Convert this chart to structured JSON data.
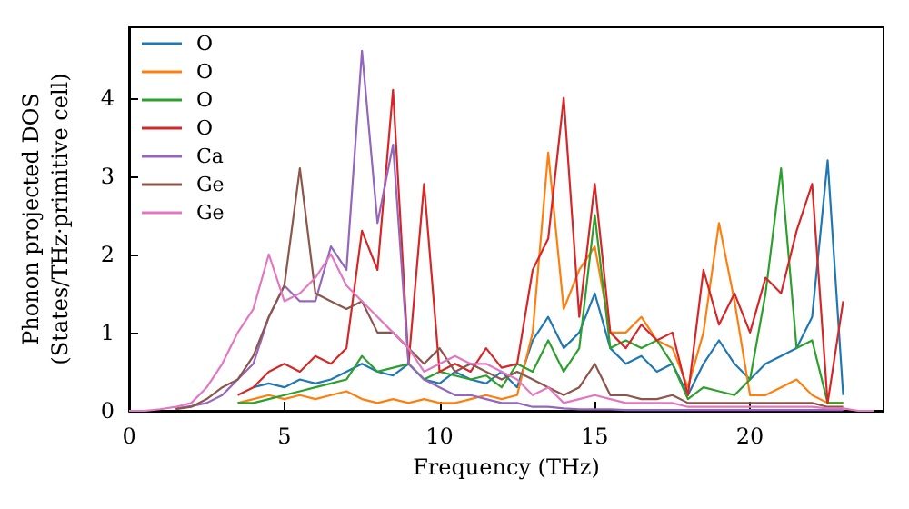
{
  "chart_data": {
    "type": "line",
    "xlabel": "Frequency (THz)",
    "ylabel": "Phonon projected DOS\n(States/THz·primitive cell)",
    "x": [
      0,
      0.5,
      1,
      1.5,
      2,
      2.5,
      3,
      3.5,
      4,
      4.5,
      5,
      5.5,
      6,
      6.5,
      7,
      7.5,
      8,
      8.5,
      9,
      9.5,
      10,
      10.5,
      11,
      11.5,
      12,
      12.5,
      13,
      13.5,
      14,
      14.5,
      15,
      15.5,
      16,
      16.5,
      17,
      17.5,
      18,
      18.5,
      19,
      19.5,
      20,
      20.5,
      21,
      21.5,
      22,
      22.5,
      23,
      23.5,
      24
    ],
    "series": [
      {
        "name": "O",
        "color": "#1f77b4",
        "values": [
          null,
          null,
          null,
          null,
          null,
          null,
          null,
          null,
          0.3,
          0.35,
          0.3,
          0.4,
          0.35,
          0.4,
          0.5,
          0.6,
          0.5,
          0.45,
          0.6,
          0.4,
          0.35,
          0.5,
          0.4,
          0.35,
          0.5,
          0.3,
          0.9,
          1.2,
          0.8,
          1.0,
          1.5,
          0.8,
          0.6,
          0.7,
          0.5,
          0.6,
          0.2,
          0.6,
          0.9,
          0.6,
          0.4,
          0.6,
          0.7,
          0.8,
          1.2,
          3.2,
          0.2,
          null,
          null
        ]
      },
      {
        "name": "O",
        "color": "#ff7f0e",
        "values": [
          null,
          null,
          null,
          null,
          null,
          null,
          null,
          0.1,
          0.15,
          0.2,
          0.15,
          0.2,
          0.15,
          0.2,
          0.25,
          0.15,
          0.1,
          0.15,
          0.1,
          0.15,
          0.1,
          0.1,
          0.15,
          0.2,
          0.15,
          0.2,
          1.0,
          3.3,
          1.3,
          1.8,
          2.1,
          1.0,
          1.0,
          1.2,
          0.9,
          0.8,
          0.3,
          1.0,
          2.4,
          1.4,
          0.2,
          0.2,
          0.3,
          0.4,
          0.2,
          0.1,
          0.1,
          null,
          null
        ]
      },
      {
        "name": "O",
        "color": "#2ca02c",
        "values": [
          null,
          null,
          null,
          null,
          null,
          null,
          null,
          0.1,
          0.1,
          0.15,
          0.2,
          0.25,
          0.3,
          0.35,
          0.4,
          0.7,
          0.5,
          0.55,
          0.6,
          0.4,
          0.5,
          0.45,
          0.4,
          0.45,
          0.3,
          0.6,
          0.5,
          0.9,
          0.5,
          0.8,
          2.5,
          0.8,
          0.9,
          0.8,
          0.9,
          0.6,
          0.15,
          0.3,
          0.25,
          0.2,
          0.4,
          1.5,
          3.1,
          0.8,
          0.9,
          0.1,
          0.1,
          null,
          null
        ]
      },
      {
        "name": "O",
        "color": "#d62728",
        "values": [
          null,
          null,
          null,
          null,
          null,
          null,
          null,
          0.2,
          0.3,
          0.5,
          0.6,
          0.5,
          0.7,
          0.6,
          0.8,
          2.3,
          1.8,
          4.1,
          0.6,
          2.9,
          0.5,
          0.6,
          0.5,
          0.8,
          0.55,
          0.6,
          1.8,
          2.2,
          4.0,
          1.2,
          2.9,
          1.0,
          0.8,
          1.1,
          0.9,
          1.0,
          0.2,
          1.8,
          1.1,
          1.5,
          1.0,
          1.7,
          1.5,
          2.3,
          2.9,
          0.1,
          1.4,
          null,
          null
        ]
      },
      {
        "name": "Ca",
        "color": "#9467bd",
        "values": [
          null,
          null,
          null,
          0.03,
          0.06,
          0.1,
          0.2,
          0.4,
          0.6,
          1.2,
          1.6,
          1.4,
          1.4,
          2.1,
          1.8,
          4.6,
          2.4,
          3.4,
          0.6,
          0.4,
          0.3,
          0.2,
          0.2,
          0.15,
          0.1,
          0.1,
          0.05,
          0.05,
          0.03,
          0.02,
          0.02,
          0.02,
          0.01,
          0.01,
          0.01,
          0.01,
          0.01,
          0.01,
          0.01,
          0.01,
          0.01,
          0.01,
          0.01,
          0.01,
          0.01,
          0.01,
          0.01,
          null,
          null
        ]
      },
      {
        "name": "Ge",
        "color": "#8c564b",
        "values": [
          null,
          null,
          null,
          0.02,
          0.05,
          0.15,
          0.3,
          0.4,
          0.7,
          1.2,
          1.6,
          3.1,
          1.5,
          1.4,
          1.3,
          1.4,
          1.0,
          1.0,
          0.8,
          0.6,
          0.8,
          0.5,
          0.6,
          0.5,
          0.4,
          0.5,
          0.4,
          0.3,
          0.2,
          0.3,
          0.6,
          0.2,
          0.2,
          0.15,
          0.15,
          0.2,
          0.1,
          0.1,
          0.1,
          0.1,
          0.1,
          0.1,
          0.1,
          0.1,
          0.1,
          0.05,
          0.05,
          null,
          null
        ]
      },
      {
        "name": "Ge",
        "color": "#e377c2",
        "values": [
          0,
          0,
          0.02,
          0.05,
          0.1,
          0.3,
          0.6,
          1.0,
          1.3,
          2.0,
          1.4,
          1.5,
          1.7,
          2.0,
          1.6,
          1.4,
          1.2,
          1.0,
          0.8,
          0.5,
          0.6,
          0.7,
          0.6,
          0.6,
          0.5,
          0.4,
          0.2,
          0.3,
          0.1,
          0.15,
          0.2,
          0.15,
          0.1,
          0.1,
          0.1,
          0.1,
          0.05,
          0.05,
          0.05,
          0.05,
          0.05,
          0.05,
          0.05,
          0.05,
          0.05,
          0.03,
          0.03,
          0,
          0
        ]
      }
    ],
    "xlim": [
      0,
      24.3
    ],
    "xticks": [
      0,
      5,
      10,
      15,
      20
    ],
    "ylim": [
      0,
      4.9
    ],
    "yticks": [
      0,
      1,
      2,
      3,
      4
    ],
    "grid": false,
    "legend": "top left",
    "marker": "none",
    "line_style": "solid"
  }
}
